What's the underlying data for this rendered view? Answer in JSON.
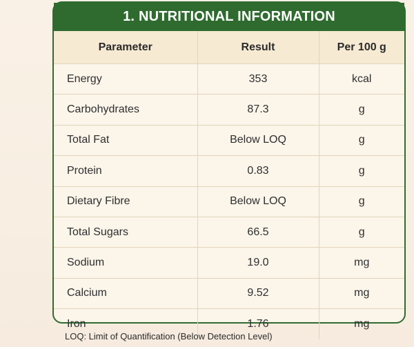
{
  "title": "1. NUTRITIONAL INFORMATION",
  "headers": {
    "parameter": "Parameter",
    "result": "Result",
    "unit": "Per 100 g"
  },
  "rows": [
    {
      "parameter": "Energy",
      "result": "353",
      "unit": "kcal"
    },
    {
      "parameter": "Carbohydrates",
      "result": "87.3",
      "unit": "g"
    },
    {
      "parameter": "Total Fat",
      "result": "Below LOQ",
      "unit": "g"
    },
    {
      "parameter": "Protein",
      "result": "0.83",
      "unit": "g"
    },
    {
      "parameter": "Dietary Fibre",
      "result": "Below LOQ",
      "unit": "g"
    },
    {
      "parameter": "Total Sugars",
      "result": "66.5",
      "unit": "g"
    },
    {
      "parameter": "Sodium",
      "result": "19.0",
      "unit": "mg"
    },
    {
      "parameter": "Calcium",
      "result": "9.52",
      "unit": "mg"
    },
    {
      "parameter": "Iron",
      "result": "1.76",
      "unit": "mg"
    }
  ],
  "footnote": "LOQ: Limit of Quantification (Below Detection Level)",
  "colors": {
    "header_green": "#2f6b2f",
    "table_header_bg": "#f6ead3",
    "row_bg": "#fbf5ea"
  }
}
